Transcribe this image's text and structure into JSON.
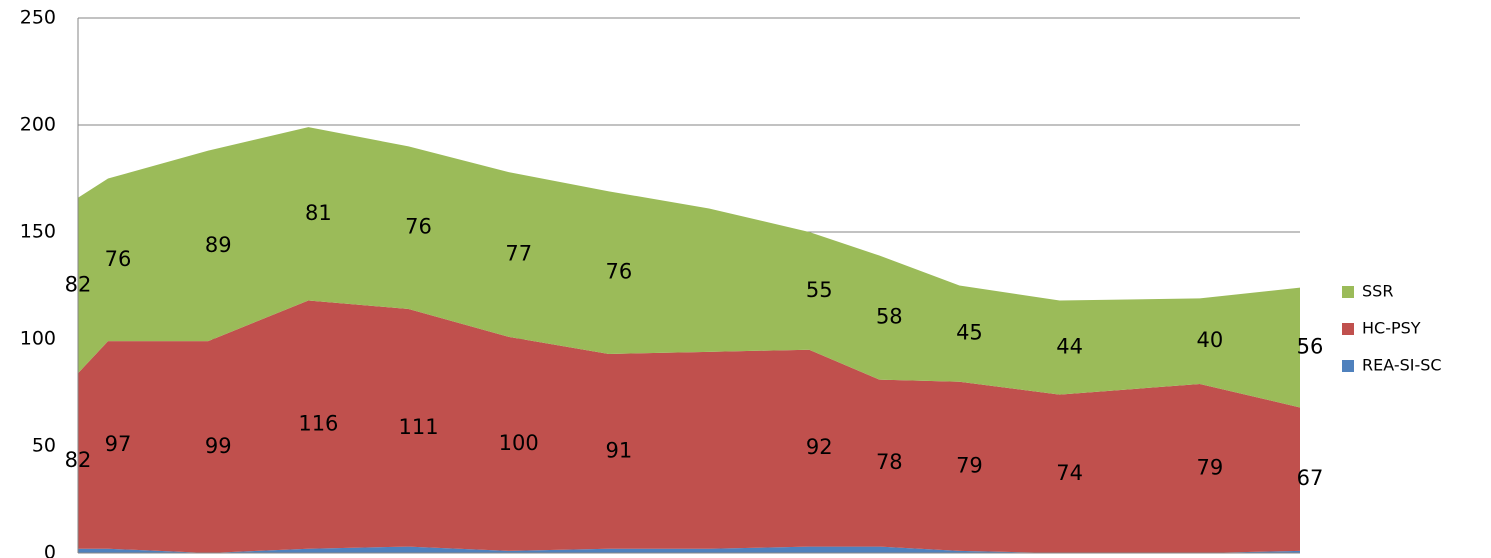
{
  "chart_data": {
    "type": "stacked-area",
    "x": [
      0,
      0.3,
      1.3,
      2.3,
      3.3,
      4.3,
      5.3,
      6.3,
      7.3,
      8.0,
      8.8,
      9.8,
      11.2,
      12.2
    ],
    "xlim": [
      0,
      12.2
    ],
    "ylim": [
      0,
      250
    ],
    "yticks": [
      0,
      50,
      100,
      150,
      200,
      250
    ],
    "grid": true,
    "legend": "right",
    "series": [
      {
        "name": "REA-SI-SC",
        "color": "#4f81bd",
        "values": [
          2,
          2,
          0,
          2,
          3,
          1,
          2,
          2,
          3,
          3,
          1,
          0,
          0,
          1
        ]
      },
      {
        "name": "HC-PSY",
        "color": "#c0504d",
        "values": [
          82,
          97,
          99,
          116,
          111,
          100,
          91,
          92,
          92,
          78,
          79,
          74,
          79,
          67
        ],
        "value_labels": [
          "82",
          "97",
          "99",
          "116",
          "111",
          "100",
          "91",
          null,
          "92",
          "78",
          "79",
          "74",
          "79",
          "67"
        ]
      },
      {
        "name": "SSR",
        "color": "#9bbb59",
        "values": [
          82,
          76,
          89,
          81,
          76,
          77,
          76,
          67,
          55,
          58,
          45,
          44,
          40,
          56
        ],
        "value_labels": [
          "82",
          "76",
          "89",
          "81",
          "76",
          "77",
          "76",
          null,
          "55",
          "58",
          "45",
          "44",
          "40",
          "56"
        ]
      }
    ]
  }
}
